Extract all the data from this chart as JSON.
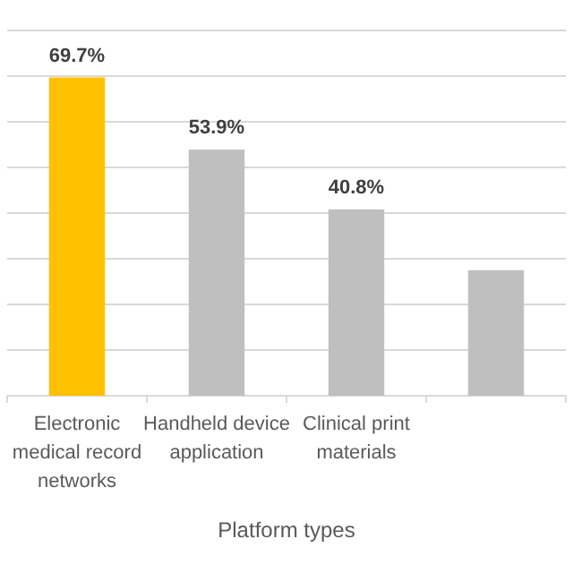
{
  "chart_data": {
    "type": "bar",
    "xlabel": "Platform types",
    "categories": [
      "Electronic medical record networks",
      "Handheld device application",
      "Clinical print materials",
      null
    ],
    "values": [
      69.7,
      53.9,
      40.8,
      27.5
    ],
    "colors": [
      "#ffc000",
      "#bfbfbf",
      "#bfbfbf",
      "#bfbfbf"
    ],
    "value_labels": [
      "69.7%",
      "53.9%",
      "40.8%",
      null
    ],
    "ylim": [
      0,
      80
    ],
    "yticks": [
      {
        "value": 0,
        "label": null
      },
      {
        "value": 10,
        "label": null
      },
      {
        "value": 20,
        "label": null
      },
      {
        "value": 30,
        "label": null
      },
      {
        "value": 40,
        "label": null
      },
      {
        "value": 50,
        "label": null
      },
      {
        "value": 60,
        "label": null
      },
      {
        "value": 70,
        "label": null
      },
      {
        "value": 80,
        "label": null
      }
    ],
    "grid": "y",
    "tick_labels": "x"
  }
}
